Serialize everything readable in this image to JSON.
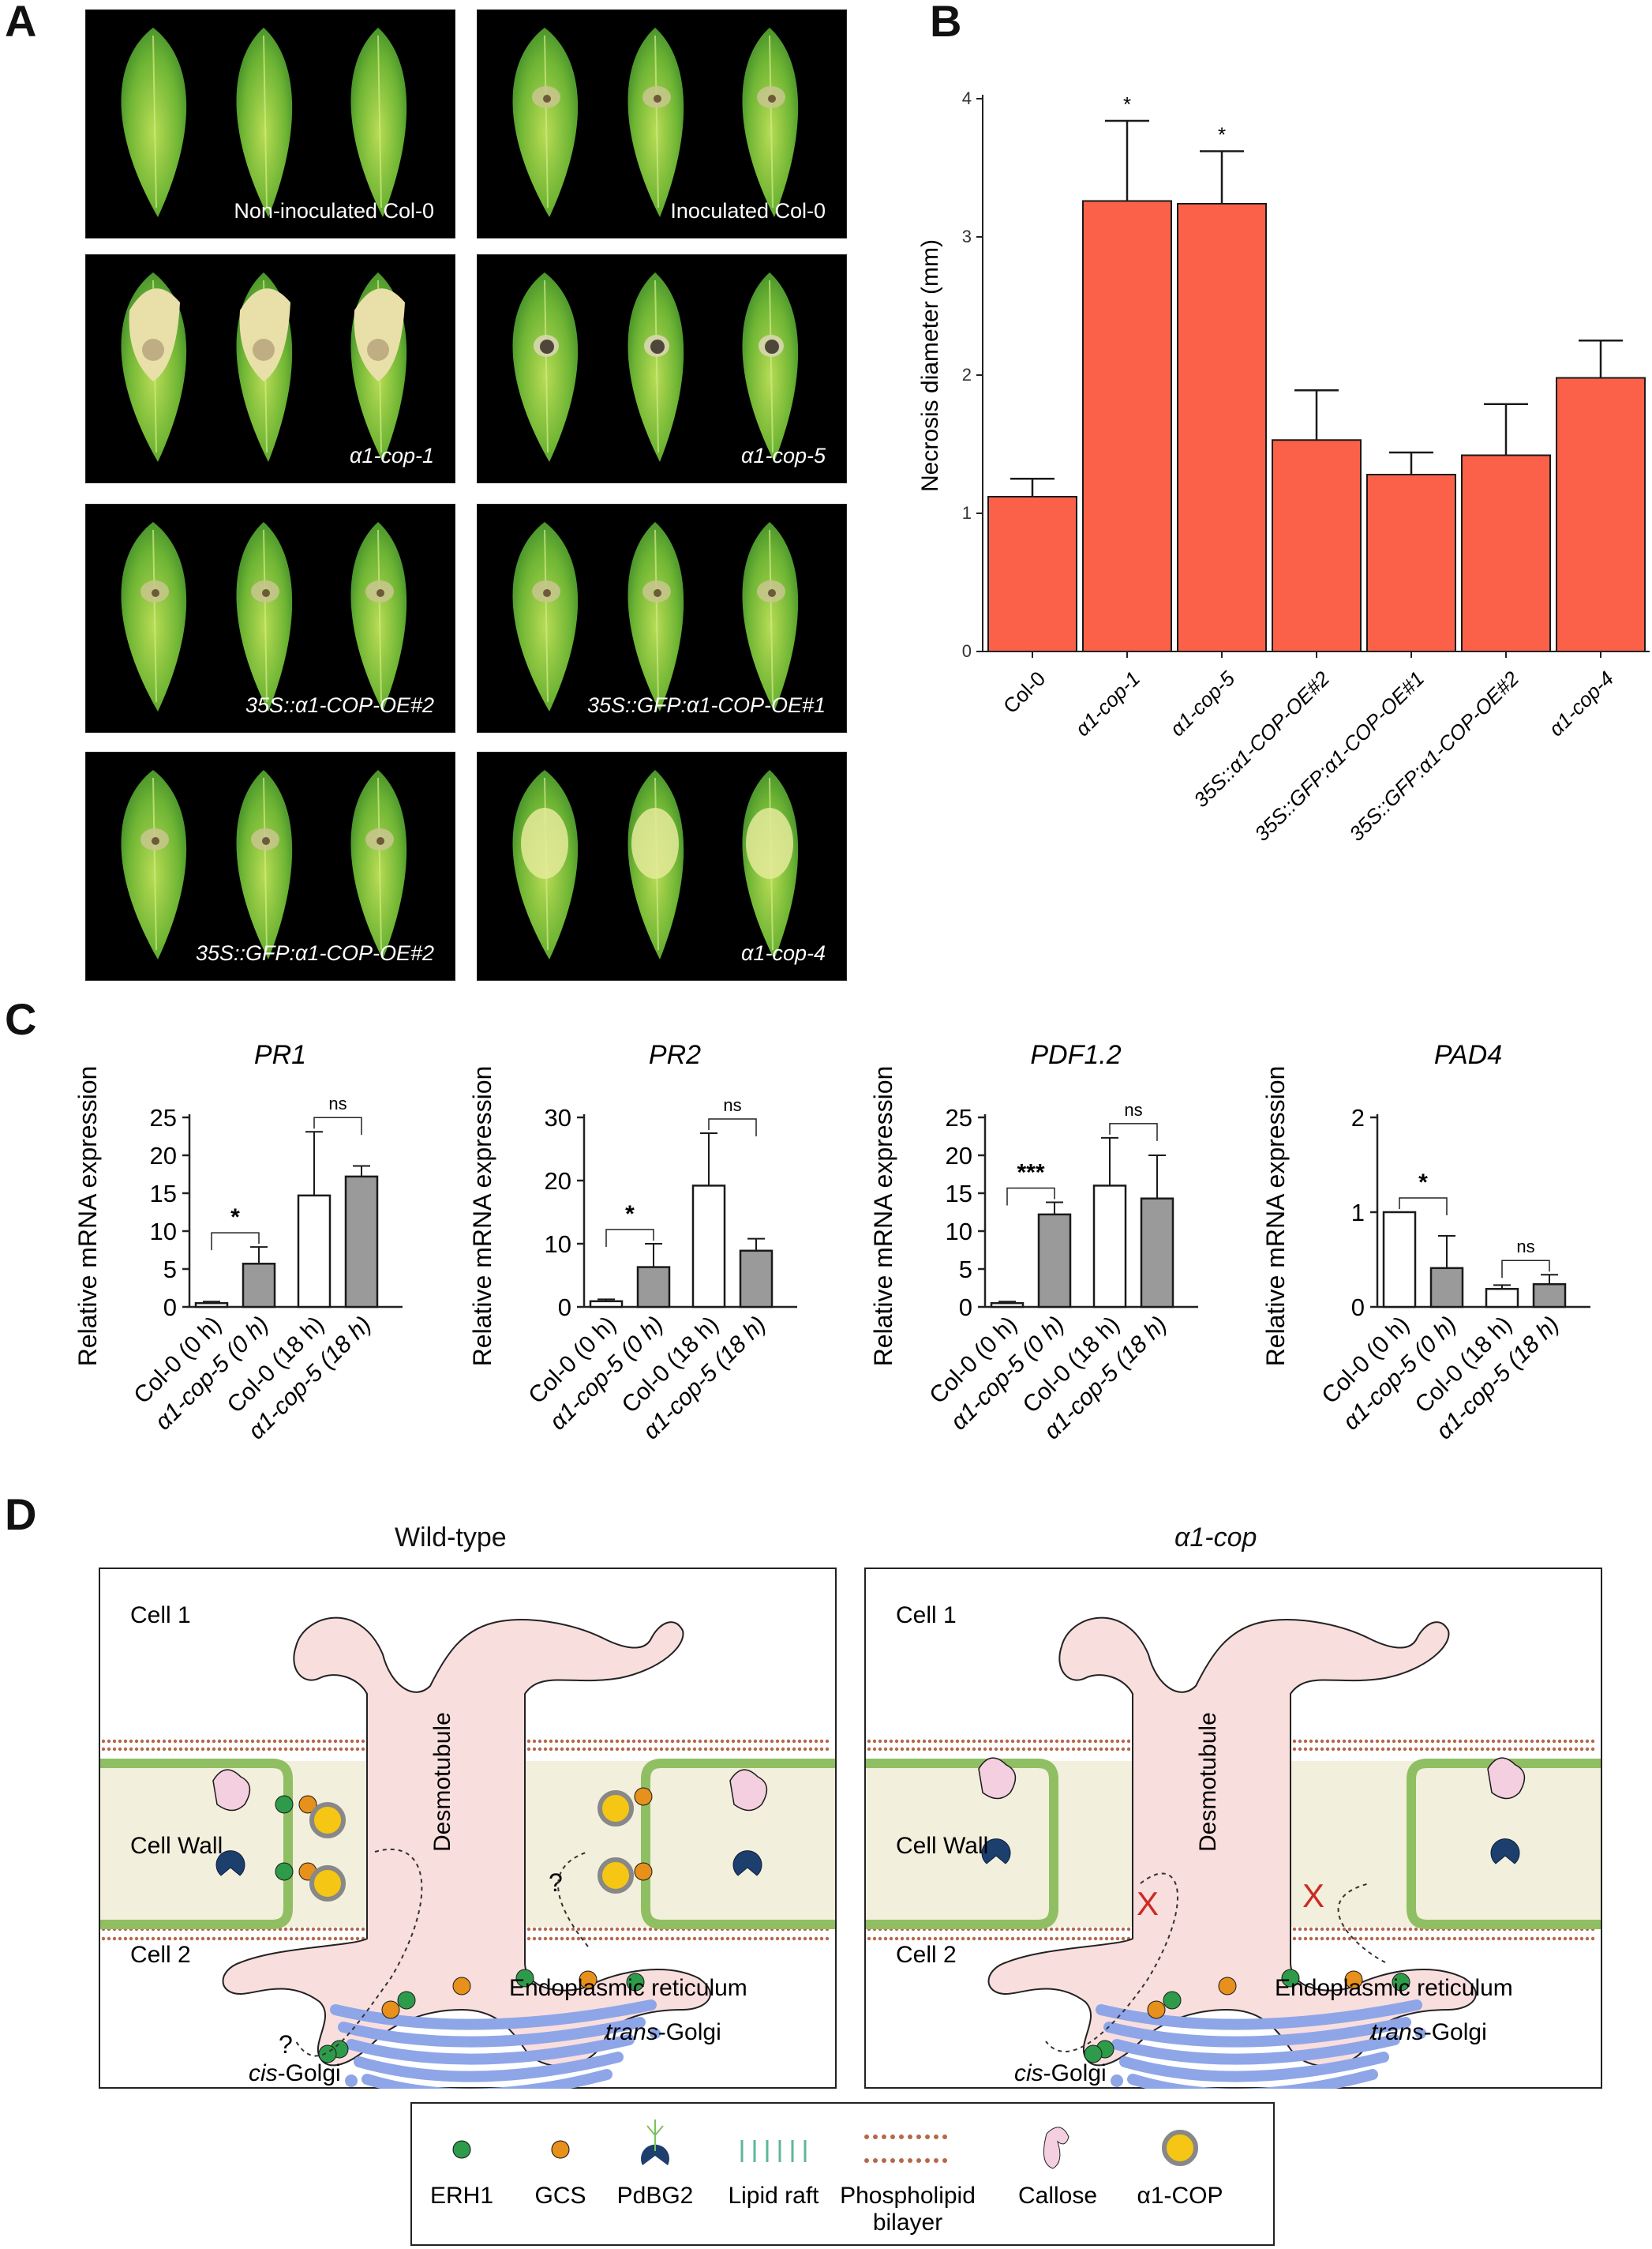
{
  "panels": {
    "a": "A",
    "b": "B",
    "c": "C",
    "d": "D"
  },
  "panel_a": {
    "photos": [
      {
        "label": "Non-inoculated Col-0",
        "italic": false,
        "lesion": "none"
      },
      {
        "label": "Inoculated Col-0",
        "italic": false,
        "lesion": "mild"
      },
      {
        "label": "α1-cop-1",
        "italic": true,
        "lesion": "severe"
      },
      {
        "label": "α1-cop-5",
        "italic": true,
        "lesion": "spot"
      },
      {
        "label": "35S::α1-COP-OE#2",
        "italic": true,
        "lesion": "mild"
      },
      {
        "label": "35S::GFP:α1-COP-OE#1",
        "italic": true,
        "lesion": "mild"
      },
      {
        "label": "35S::GFP:α1-COP-OE#2",
        "italic": true,
        "lesion": "mild"
      },
      {
        "label": "α1-cop-4",
        "italic": true,
        "lesion": "yellow"
      }
    ]
  },
  "chart_data": [
    {
      "type": "bar",
      "ylabel": "Necrosis diameter (mm)",
      "categories": [
        "Col-0",
        "α1-cop-1",
        "α1-cop-5",
        "35S::α1-COP-OE#2",
        "35S::GFP:α1-COP-OE#1",
        "35S::GFP:α1-COP-OE#2",
        "α1-cop-4"
      ],
      "values": [
        1.12,
        3.26,
        3.24,
        1.53,
        1.28,
        1.42,
        1.98
      ],
      "errors": [
        0.13,
        0.58,
        0.38,
        0.36,
        0.16,
        0.37,
        0.27
      ],
      "significance": [
        "",
        "*",
        "*",
        "",
        "",
        "",
        ""
      ],
      "ylim": [
        0,
        4
      ],
      "yticks": [
        "0",
        "1",
        "2",
        "3",
        "4"
      ],
      "color": "#fa6148"
    },
    {
      "type": "bar",
      "title": "PR1",
      "ylabel": "Relative mRNA expression",
      "categories": [
        "Col-0 (0 h)",
        "α1-cop-5 (0 h)",
        "Col-0 (18 h)",
        "α1-cop-5 (18 h)"
      ],
      "values": [
        0.5,
        5.7,
        14.7,
        17.2
      ],
      "errors": [
        0.2,
        2.2,
        8.4,
        1.4
      ],
      "ylim": [
        0,
        25
      ],
      "yticks": [
        "0",
        "5",
        "10",
        "15",
        "20",
        "25"
      ],
      "comparisons": [
        {
          "label": "*"
        },
        {
          "label": "ns"
        }
      ]
    },
    {
      "type": "bar",
      "title": "PR2",
      "ylabel": "Relative mRNA expression",
      "categories": [
        "Col-0 (0 h)",
        "α1-cop-5 (0 h)",
        "Col-0 (18 h)",
        "α1-cop-5 (18 h)"
      ],
      "values": [
        0.9,
        6.3,
        19.2,
        8.9
      ],
      "errors": [
        0.3,
        3.7,
        8.3,
        1.9
      ],
      "ylim": [
        0,
        30
      ],
      "yticks": [
        "0",
        "10",
        "20",
        "30"
      ],
      "comparisons": [
        {
          "label": "*"
        },
        {
          "label": "ns"
        }
      ]
    },
    {
      "type": "bar",
      "title": "PDF1.2",
      "ylabel": "Relative mRNA expression",
      "categories": [
        "Col-0 (0 h)",
        "α1-cop-5 (0 h)",
        "Col-0 (18 h)",
        "α1-cop-5 (18 h)"
      ],
      "values": [
        0.5,
        12.2,
        16.0,
        14.3
      ],
      "errors": [
        0.2,
        1.6,
        6.3,
        5.7
      ],
      "ylim": [
        0,
        25
      ],
      "yticks": [
        "0",
        "5",
        "10",
        "15",
        "20",
        "25"
      ],
      "comparisons": [
        {
          "label": "***"
        },
        {
          "label": "ns"
        }
      ]
    },
    {
      "type": "bar",
      "title": "PAD4",
      "ylabel": "Relative mRNA expression",
      "categories": [
        "Col-0 (0 h)",
        "α1-cop-5 (0 h)",
        "Col-0 (18 h)",
        "α1-cop-5 (18 h)"
      ],
      "values": [
        1.0,
        0.41,
        0.19,
        0.24
      ],
      "errors": [
        0.0,
        0.34,
        0.04,
        0.1
      ],
      "ylim": [
        0,
        2
      ],
      "yticks": [
        "0",
        "1",
        "2"
      ],
      "comparisons": [
        {
          "label": "*"
        },
        {
          "label": "ns"
        }
      ]
    }
  ],
  "panel_d": {
    "wild_type": {
      "title": "Wild-type",
      "cell1": "Cell 1",
      "cell2": "Cell 2",
      "cell_wall": "Cell Wall",
      "desmotubule": "Desmotubule",
      "er": "Endoplasmic reticulum",
      "trans_golgi_prefix": "trans",
      "trans_golgi_suffix": "-Golgi",
      "cis_golgi_prefix": "cis",
      "cis_golgi_suffix": "-Golgi",
      "question": "?"
    },
    "mutant": {
      "title": "α1-cop",
      "cell1": "Cell 1",
      "cell2": "Cell 2",
      "cell_wall": "Cell Wall",
      "desmotubule": "Desmotubule",
      "er": "Endoplasmic reticulum",
      "trans_golgi_prefix": "trans",
      "trans_golgi_suffix": "-Golgi",
      "cis_golgi_prefix": "cis",
      "cis_golgi_suffix": "-Golgi",
      "block": "X"
    },
    "legend": [
      {
        "label": "ERH1",
        "line2": ""
      },
      {
        "label": "GCS",
        "line2": ""
      },
      {
        "label": "PdBG2",
        "line2": ""
      },
      {
        "label": "Lipid raft",
        "line2": ""
      },
      {
        "label": "Phospholipid",
        "line2": "bilayer"
      },
      {
        "label": "Callose",
        "line2": ""
      },
      {
        "label": "α1-COP",
        "line2": ""
      }
    ],
    "colors": {
      "erh1": "#2e9b4a",
      "gcs": "#e7901c",
      "pdbg2": "#1d3f6e",
      "callose": "#f3cfe0",
      "a1cop": "#f5c613",
      "er": "#f9dede",
      "golgi": "#8ea6e8",
      "wall": "#f2efdc",
      "membrane": "#8fbf62"
    }
  }
}
